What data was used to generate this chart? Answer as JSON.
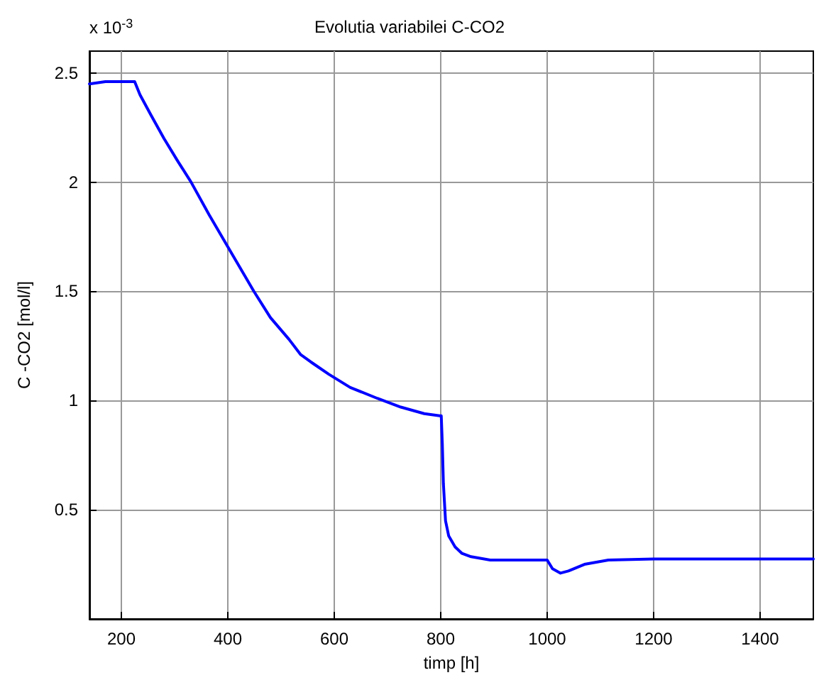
{
  "chart_data": {
    "type": "line",
    "title": "Evolutia variabilei C-CO2",
    "xlabel": "timp [h]",
    "ylabel": "C -CO2 [mol/l]",
    "annotations": [
      "x 10$^{-3}$"
    ],
    "series": [
      {
        "color": "#0000ff",
        "x": [
          140,
          170,
          200,
          225,
          235,
          255,
          280,
          305,
          331,
          365,
          401,
          425,
          449,
          480,
          515,
          537,
          560,
          590,
          630,
          681,
          725,
          769,
          798,
          801,
          803,
          805,
          809,
          815,
          827,
          840,
          857,
          893,
          950,
          1000,
          1010,
          1025,
          1040,
          1070,
          1115,
          1200,
          1300,
          1400,
          1500
        ],
        "values": [
          2.45,
          2.46,
          2.46,
          2.46,
          2.4,
          2.31,
          2.2,
          2.1,
          2.0,
          1.85,
          1.7,
          1.6,
          1.5,
          1.38,
          1.28,
          1.21,
          1.17,
          1.12,
          1.06,
          1.01,
          0.97,
          0.94,
          0.93,
          0.93,
          0.8,
          0.62,
          0.45,
          0.38,
          0.33,
          0.3,
          0.285,
          0.27,
          0.27,
          0.27,
          0.23,
          0.21,
          0.22,
          0.25,
          0.27,
          0.275,
          0.275,
          0.275,
          0.275
        ]
      }
    ],
    "xlim": [
      140,
      1500
    ],
    "xticks": [
      200,
      400,
      600,
      800,
      1000,
      1200,
      1400
    ],
    "ylim": [
      0,
      2.6
    ],
    "yticks": [
      0.5,
      1,
      1.5,
      2,
      2.5
    ],
    "grid": true,
    "marker": "none",
    "line_style": "solid"
  }
}
